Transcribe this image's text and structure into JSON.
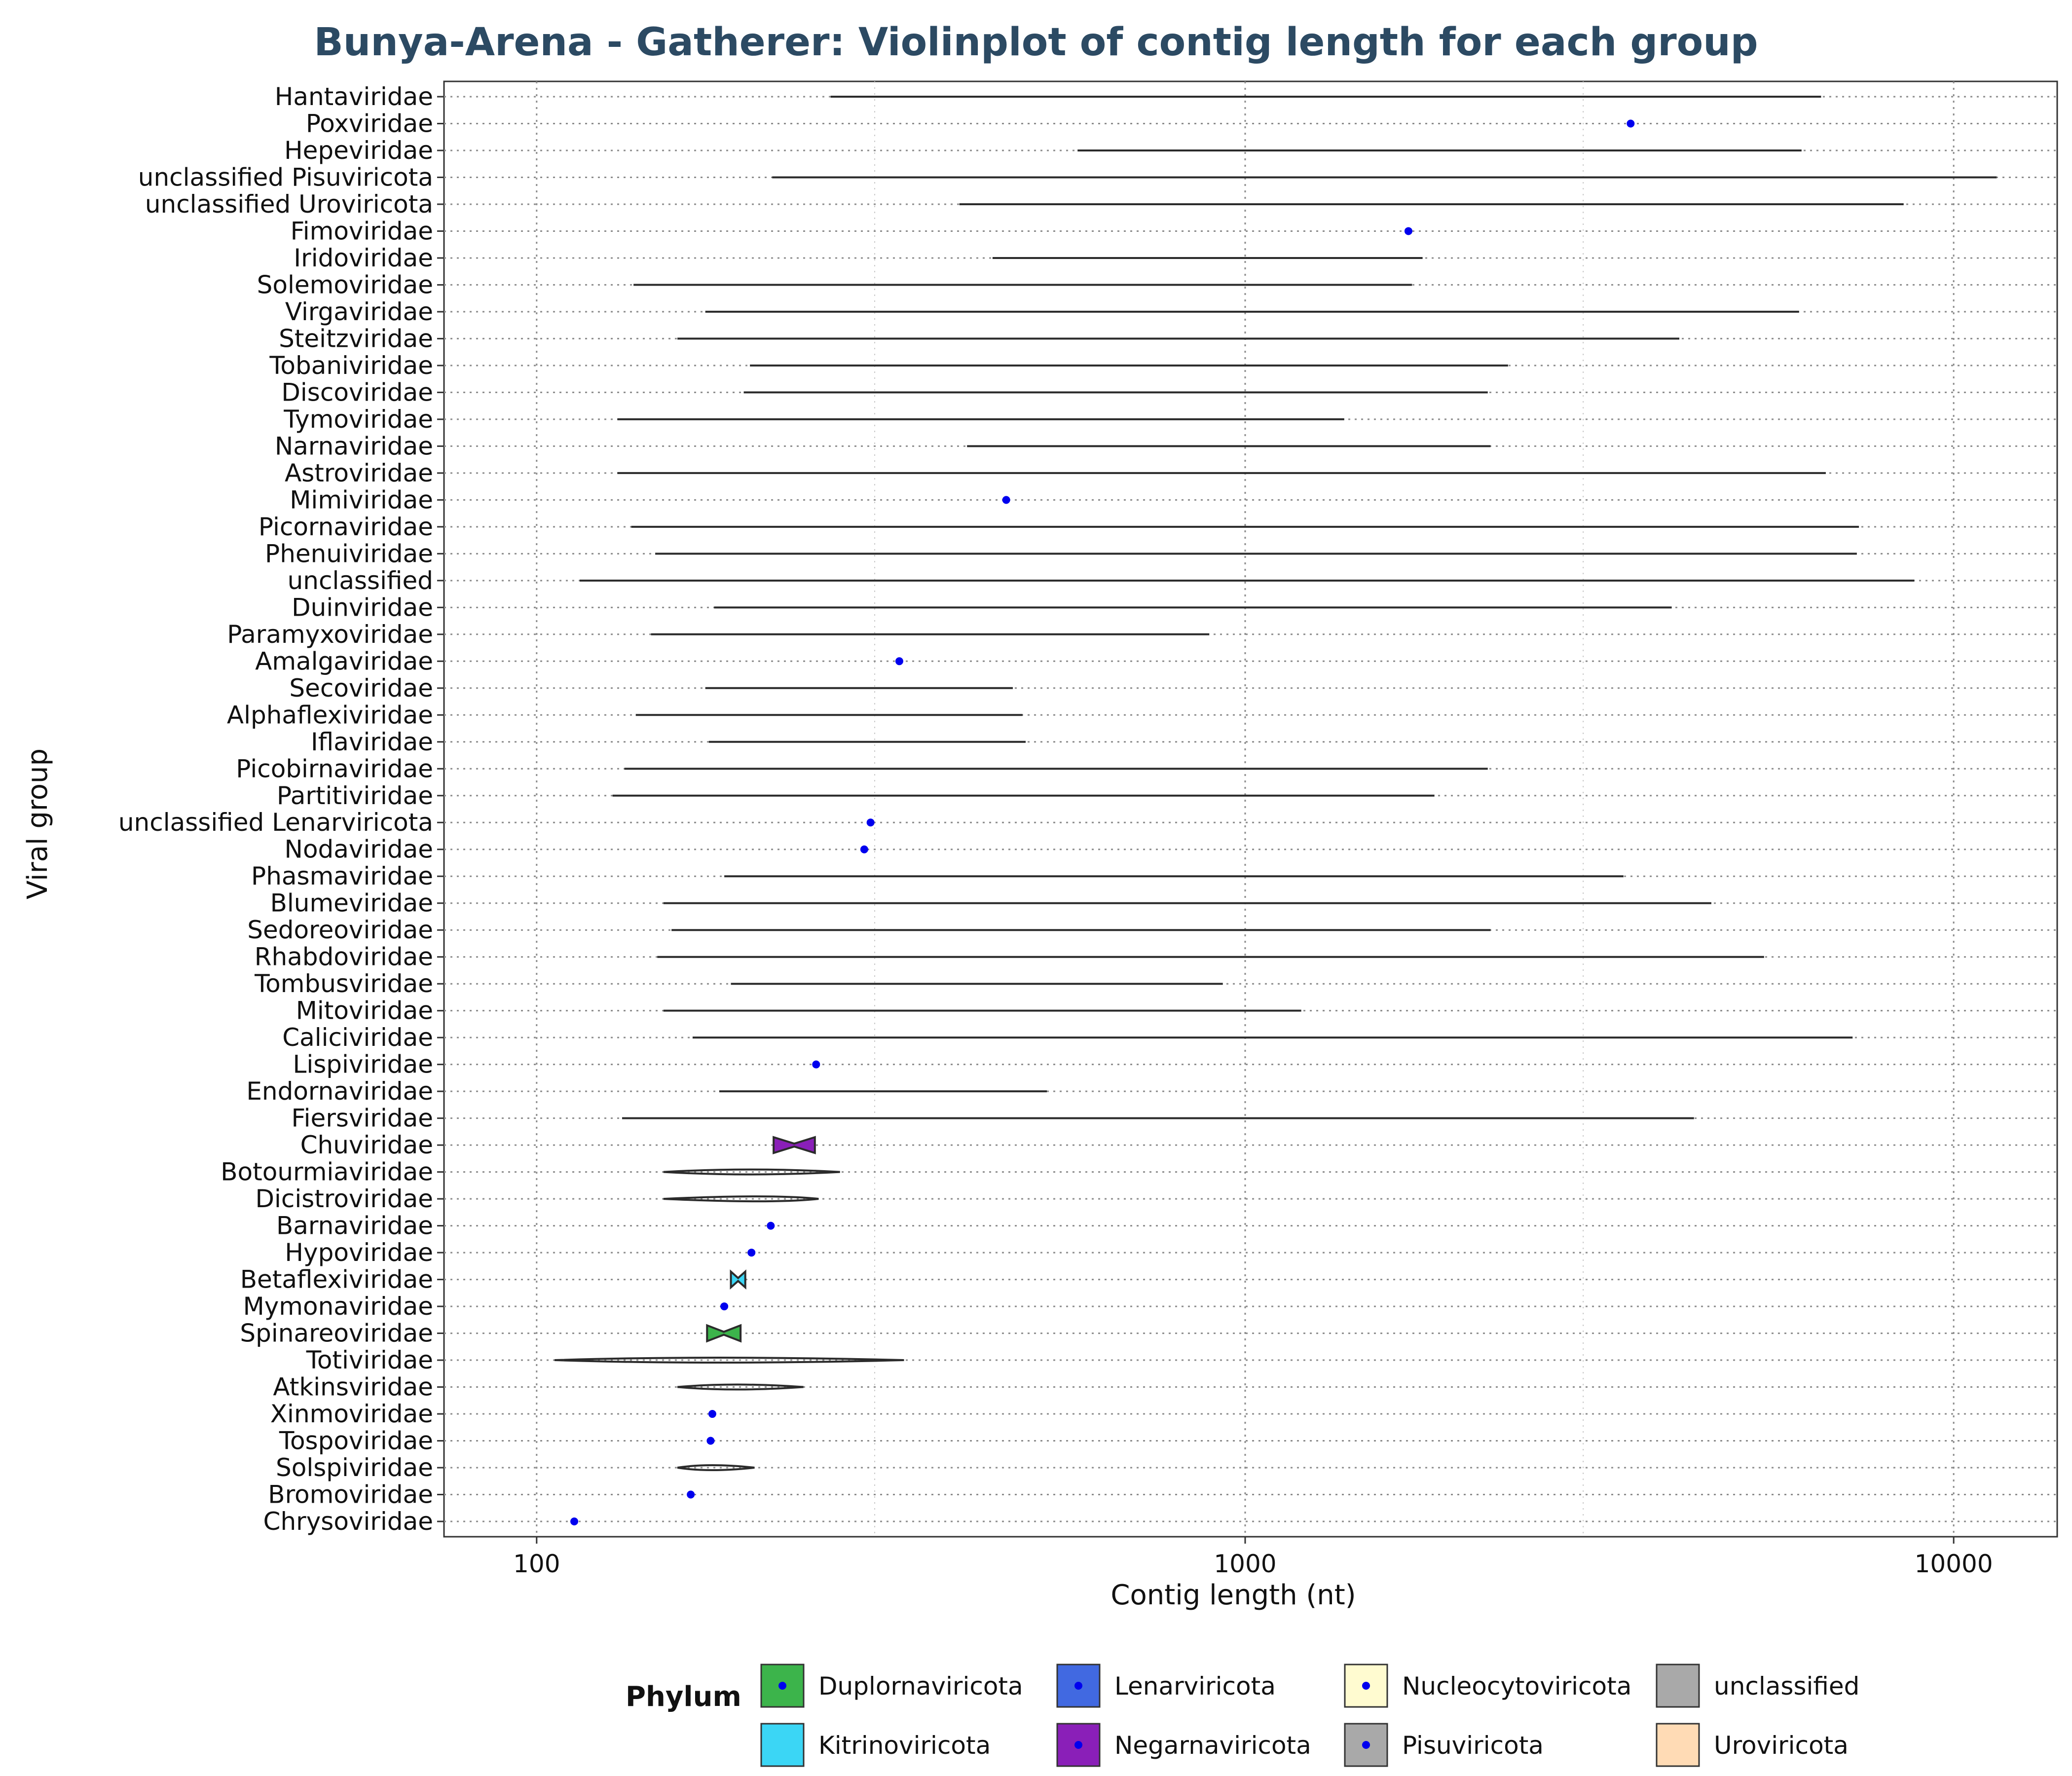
{
  "chart_data": {
    "type": "violin",
    "title": "Bunya-Arena - Gatherer: Violinplot of contig length for each group",
    "xlabel": "Contig length (nt)",
    "ylabel": "Viral group",
    "x_scale": "log10",
    "xlim": [
      74,
      14000
    ],
    "x_ticks": [
      100,
      1000,
      10000
    ],
    "x_tick_labels": [
      "100",
      "1000",
      "10000"
    ],
    "grid": true,
    "legend": {
      "title": "Phylum",
      "position": "bottom",
      "items": [
        {
          "name": "Duplornaviricota",
          "color": "#3cb44b",
          "dot": true
        },
        {
          "name": "Kitrinoviricota",
          "color": "#3bd6f5",
          "dot": false
        },
        {
          "name": "Lenarviricota",
          "color": "#4169e1",
          "dot": true
        },
        {
          "name": "Negarnaviricota",
          "color": "#8a1fb8",
          "dot": true
        },
        {
          "name": "Nucleocytoviricota",
          "color": "#fffbd0",
          "dot": true
        },
        {
          "name": "Pisuviricota",
          "color": "#a9a9a9",
          "dot": true
        },
        {
          "name": "unclassified",
          "color": "#a9a9a9",
          "dot": false
        },
        {
          "name": "Uroviricota",
          "color": "#ffdbb5",
          "dot": false
        }
      ]
    },
    "groups": [
      {
        "name": "Hantaviridae",
        "min": 260,
        "max": 6500,
        "kind": "line",
        "fill": "none"
      },
      {
        "name": "Poxviridae",
        "value": 3500,
        "kind": "point"
      },
      {
        "name": "Hepeviridae",
        "min": 580,
        "max": 6100,
        "kind": "line",
        "fill": "none"
      },
      {
        "name": "unclassified Pisuviricota",
        "min": 215,
        "max": 11500,
        "kind": "line",
        "fill": "none"
      },
      {
        "name": "unclassified Uroviricota",
        "min": 395,
        "max": 8500,
        "kind": "line",
        "fill": "none"
      },
      {
        "name": "Fimoviridae",
        "value": 1700,
        "kind": "point"
      },
      {
        "name": "Iridoviridae",
        "min": 440,
        "max": 1780,
        "kind": "line",
        "fill": "none"
      },
      {
        "name": "Solemoviridae",
        "min": 137,
        "max": 1720,
        "kind": "line",
        "fill": "none"
      },
      {
        "name": "Virgaviridae",
        "min": 173,
        "max": 6050,
        "kind": "line",
        "fill": "none"
      },
      {
        "name": "Steitzviridae",
        "min": 158,
        "max": 4100,
        "kind": "line",
        "fill": "none"
      },
      {
        "name": "Tobaniviridae",
        "min": 200,
        "max": 2350,
        "kind": "line",
        "fill": "none"
      },
      {
        "name": "Discoviridae",
        "min": 196,
        "max": 2200,
        "kind": "line",
        "fill": "none"
      },
      {
        "name": "Tymoviridae",
        "min": 130,
        "max": 1380,
        "kind": "line",
        "fill": "none"
      },
      {
        "name": "Narnaviridae",
        "min": 405,
        "max": 2220,
        "kind": "line",
        "fill": "none"
      },
      {
        "name": "Astroviridae",
        "min": 130,
        "max": 6600,
        "kind": "line",
        "fill": "none"
      },
      {
        "name": "Mimiviridae",
        "value": 460,
        "kind": "point"
      },
      {
        "name": "Picornaviridae",
        "min": 136,
        "max": 7350,
        "kind": "line",
        "fill": "none"
      },
      {
        "name": "Phenuiviridae",
        "min": 147,
        "max": 7300,
        "kind": "line",
        "fill": "none"
      },
      {
        "name": "unclassified",
        "min": 115,
        "max": 8800,
        "kind": "line",
        "fill": "none"
      },
      {
        "name": "Duinviridae",
        "min": 178,
        "max": 4000,
        "kind": "line",
        "fill": "none"
      },
      {
        "name": "Paramyxoviridae",
        "min": 145,
        "max": 890,
        "kind": "line",
        "fill": "none"
      },
      {
        "name": "Amalgaviridae",
        "value": 325,
        "kind": "point"
      },
      {
        "name": "Secoviridae",
        "min": 173,
        "max": 470,
        "kind": "line",
        "fill": "none"
      },
      {
        "name": "Alphaflexiviridae",
        "min": 138,
        "max": 485,
        "kind": "line",
        "fill": "none"
      },
      {
        "name": "Iflaviridae",
        "min": 175,
        "max": 490,
        "kind": "line",
        "fill": "none"
      },
      {
        "name": "Picobirnaviridae",
        "min": 133,
        "max": 2200,
        "kind": "line",
        "fill": "none"
      },
      {
        "name": "Partitiviridae",
        "min": 128,
        "max": 1850,
        "kind": "line",
        "fill": "none"
      },
      {
        "name": "unclassified Lenarviricota",
        "value": 296,
        "kind": "point"
      },
      {
        "name": "Nodaviridae",
        "value": 290,
        "kind": "point"
      },
      {
        "name": "Phasmaviridae",
        "min": 184,
        "max": 3420,
        "kind": "line",
        "fill": "none"
      },
      {
        "name": "Blumeviridae",
        "min": 151,
        "max": 4550,
        "kind": "line",
        "fill": "none"
      },
      {
        "name": "Sedoreoviridae",
        "min": 155,
        "max": 2220,
        "kind": "line",
        "fill": "none"
      },
      {
        "name": "Rhabdoviridae",
        "min": 148,
        "max": 5400,
        "kind": "line",
        "fill": "none"
      },
      {
        "name": "Tombusviridae",
        "min": 188,
        "max": 930,
        "kind": "line",
        "fill": "none"
      },
      {
        "name": "Mitoviridae",
        "min": 151,
        "max": 1200,
        "kind": "line",
        "fill": "none"
      },
      {
        "name": "Caliciviridae",
        "min": 166,
        "max": 7200,
        "kind": "line",
        "fill": "none"
      },
      {
        "name": "Lispiviridae",
        "value": 248,
        "kind": "point"
      },
      {
        "name": "Endornaviridae",
        "min": 181,
        "max": 525,
        "kind": "line",
        "fill": "none"
      },
      {
        "name": "Fiersviridae",
        "min": 132,
        "max": 4300,
        "kind": "line",
        "fill": "none"
      },
      {
        "name": "Chuviridae",
        "min": 216,
        "max": 247,
        "kind": "violin",
        "fill": "#8a1fb8",
        "shape": "bowtie"
      },
      {
        "name": "Botourmiaviridae",
        "min": 151,
        "max": 268,
        "kind": "violin",
        "fill": "none",
        "shape": "spindle",
        "peak": 200
      },
      {
        "name": "Dicistroviridae",
        "min": 151,
        "max": 250,
        "kind": "violin",
        "fill": "none",
        "shape": "spindle",
        "peak": 215
      },
      {
        "name": "Barnaviridae",
        "value": 214,
        "kind": "point"
      },
      {
        "name": "Hypoviridae",
        "value": 201,
        "kind": "point"
      },
      {
        "name": "Betaflexiviridae",
        "min": 188,
        "max": 197,
        "kind": "violin",
        "fill": "#3bd6f5",
        "shape": "bowtie"
      },
      {
        "name": "Mymonaviridae",
        "value": 184,
        "kind": "point"
      },
      {
        "name": "Spinareoviridae",
        "min": 174,
        "max": 194,
        "kind": "violin",
        "fill": "#3cb44b",
        "shape": "bowtie"
      },
      {
        "name": "Totiviridae",
        "min": 106,
        "max": 330,
        "kind": "violin",
        "fill": "none",
        "shape": "spindle",
        "peak": 175
      },
      {
        "name": "Atkinsviridae",
        "min": 158,
        "max": 238,
        "kind": "violin",
        "fill": "none",
        "shape": "spindle",
        "peak": 190
      },
      {
        "name": "Xinmoviridae",
        "value": 177,
        "kind": "point"
      },
      {
        "name": "Tospoviridae",
        "value": 176,
        "kind": "point"
      },
      {
        "name": "Solspiviridae",
        "min": 158,
        "max": 203,
        "kind": "violin",
        "fill": "none",
        "shape": "spindle",
        "peak": 175
      },
      {
        "name": "Bromoviridae",
        "value": 165,
        "kind": "point"
      },
      {
        "name": "Chrysoviridae",
        "value": 113,
        "kind": "point"
      }
    ]
  }
}
